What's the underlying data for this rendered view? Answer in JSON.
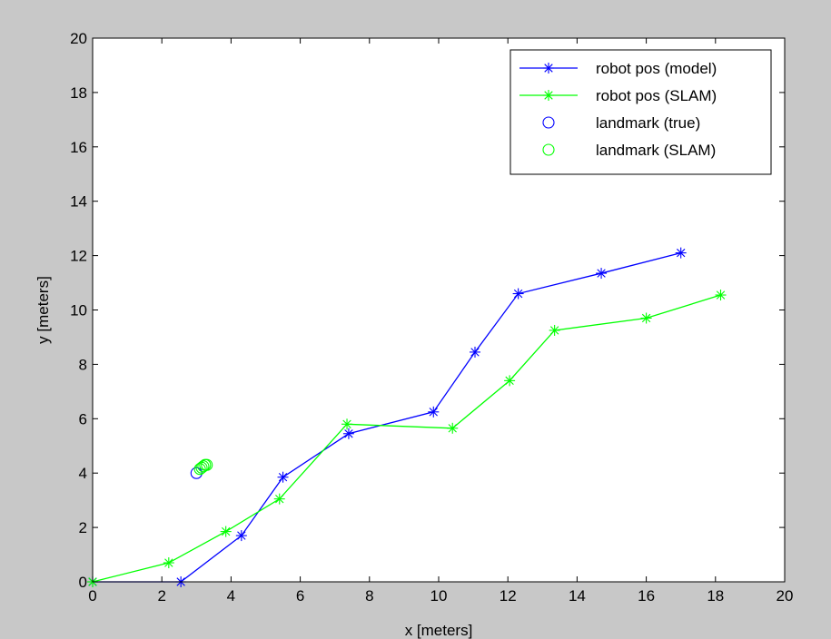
{
  "chart_data": {
    "type": "line",
    "title": "",
    "xlabel": "x [meters]",
    "ylabel": "y [meters]",
    "xlim": [
      0,
      20
    ],
    "ylim": [
      0,
      20
    ],
    "xticks": [
      0,
      2,
      4,
      6,
      8,
      10,
      12,
      14,
      16,
      18,
      20
    ],
    "yticks": [
      0,
      2,
      4,
      6,
      8,
      10,
      12,
      14,
      16,
      18,
      20
    ],
    "grid": false,
    "legend_position": "top-right",
    "series": [
      {
        "name": "robot pos (model)",
        "kind": "line-star",
        "color": "#0000ff",
        "x": [
          0,
          2.55,
          4.3,
          5.5,
          7.4,
          9.85,
          11.05,
          12.3,
          14.7,
          17.0
        ],
        "y": [
          0,
          0,
          1.7,
          3.85,
          5.45,
          6.25,
          8.45,
          10.6,
          11.35,
          12.1
        ]
      },
      {
        "name": "robot pos (SLAM)",
        "kind": "line-star",
        "color": "#00ff00",
        "x": [
          0,
          2.2,
          3.85,
          5.4,
          7.35,
          10.4,
          12.05,
          13.35,
          16.0,
          18.15
        ],
        "y": [
          0,
          0.7,
          1.85,
          3.05,
          5.8,
          5.65,
          7.4,
          9.25,
          9.7,
          10.55
        ]
      },
      {
        "name": "landmark (true)",
        "kind": "circle",
        "color": "#0000ff",
        "x": [
          3.0
        ],
        "y": [
          4.0
        ]
      },
      {
        "name": "landmark (SLAM)",
        "kind": "circle",
        "color": "#00ff00",
        "x": [
          3.1,
          3.15,
          3.2,
          3.25,
          3.3
        ],
        "y": [
          4.15,
          4.2,
          4.25,
          4.3,
          4.3
        ]
      }
    ]
  }
}
